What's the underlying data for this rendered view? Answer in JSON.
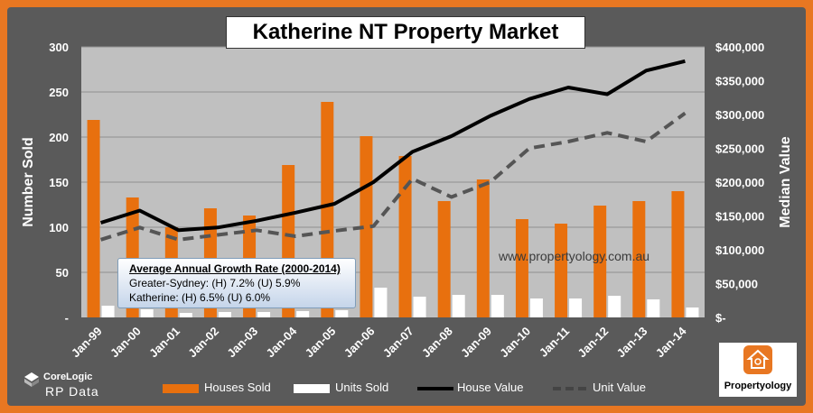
{
  "chart_data": {
    "type": "bar",
    "title": "Katherine NT Property Market",
    "categories": [
      "Jan-99",
      "Jan-00",
      "Jan-01",
      "Jan-02",
      "Jan-03",
      "Jan-04",
      "Jan-05",
      "Jan-06",
      "Jan-07",
      "Jan-08",
      "Jan-09",
      "Jan-10",
      "Jan-11",
      "Jan-12",
      "Jan-13",
      "Jan-14"
    ],
    "ylabel": "Number Sold",
    "y2label": "Median Value",
    "ylim": [
      0,
      300
    ],
    "y2lim": [
      0,
      400000
    ],
    "yticks": [
      "-",
      "50",
      "100",
      "150",
      "200",
      "250",
      "300"
    ],
    "y2ticks": [
      "$-",
      "$50,000",
      "$100,000",
      "$150,000",
      "$200,000",
      "$250,000",
      "$300,000",
      "$350,000",
      "$400,000"
    ],
    "grid": true,
    "legend_position": "bottom",
    "series": [
      {
        "name": "Houses Sold",
        "type": "bar",
        "axis": "left",
        "color": "#e8700e",
        "values": [
          219,
          133,
          100,
          121,
          113,
          169,
          239,
          201,
          179,
          129,
          153,
          109,
          104,
          124,
          129,
          140
        ]
      },
      {
        "name": "Units Sold",
        "type": "bar",
        "axis": "left",
        "color": "#ffffff",
        "values": [
          13,
          9,
          5,
          6,
          6,
          7,
          8,
          33,
          23,
          25,
          25,
          21,
          21,
          24,
          20,
          11
        ]
      },
      {
        "name": "House Value",
        "type": "line",
        "axis": "right",
        "color": "#000000",
        "style": "solid",
        "values": [
          140000,
          158000,
          129000,
          133000,
          143000,
          155000,
          168000,
          200000,
          245000,
          268000,
          298000,
          323000,
          340000,
          330000,
          365000,
          379000
        ]
      },
      {
        "name": "Unit Value",
        "type": "line",
        "axis": "right",
        "color": "#555555",
        "style": "dashed",
        "values": [
          115000,
          133000,
          115000,
          122000,
          129000,
          120000,
          128000,
          135000,
          205000,
          178000,
          200000,
          250000,
          260000,
          273000,
          260000,
          302000
        ]
      }
    ]
  },
  "watermark": "www.propertyology.com.au",
  "growth_box": {
    "title": "Average Annual Growth Rate (2000-2014)",
    "line1": "Greater-Sydney: (H) 7.2% (U) 5.9%",
    "line2": "Katherine: (H) 6.5% (U) 6.0%"
  },
  "logos": {
    "corelogic_name": "CoreLogic",
    "corelogic_sub": "RP Data",
    "propertyology_name": "Propertyology"
  },
  "colors": {
    "frame": "#e87722",
    "panel": "#5a5a5a",
    "plot_bg": "#c0c0c0"
  }
}
